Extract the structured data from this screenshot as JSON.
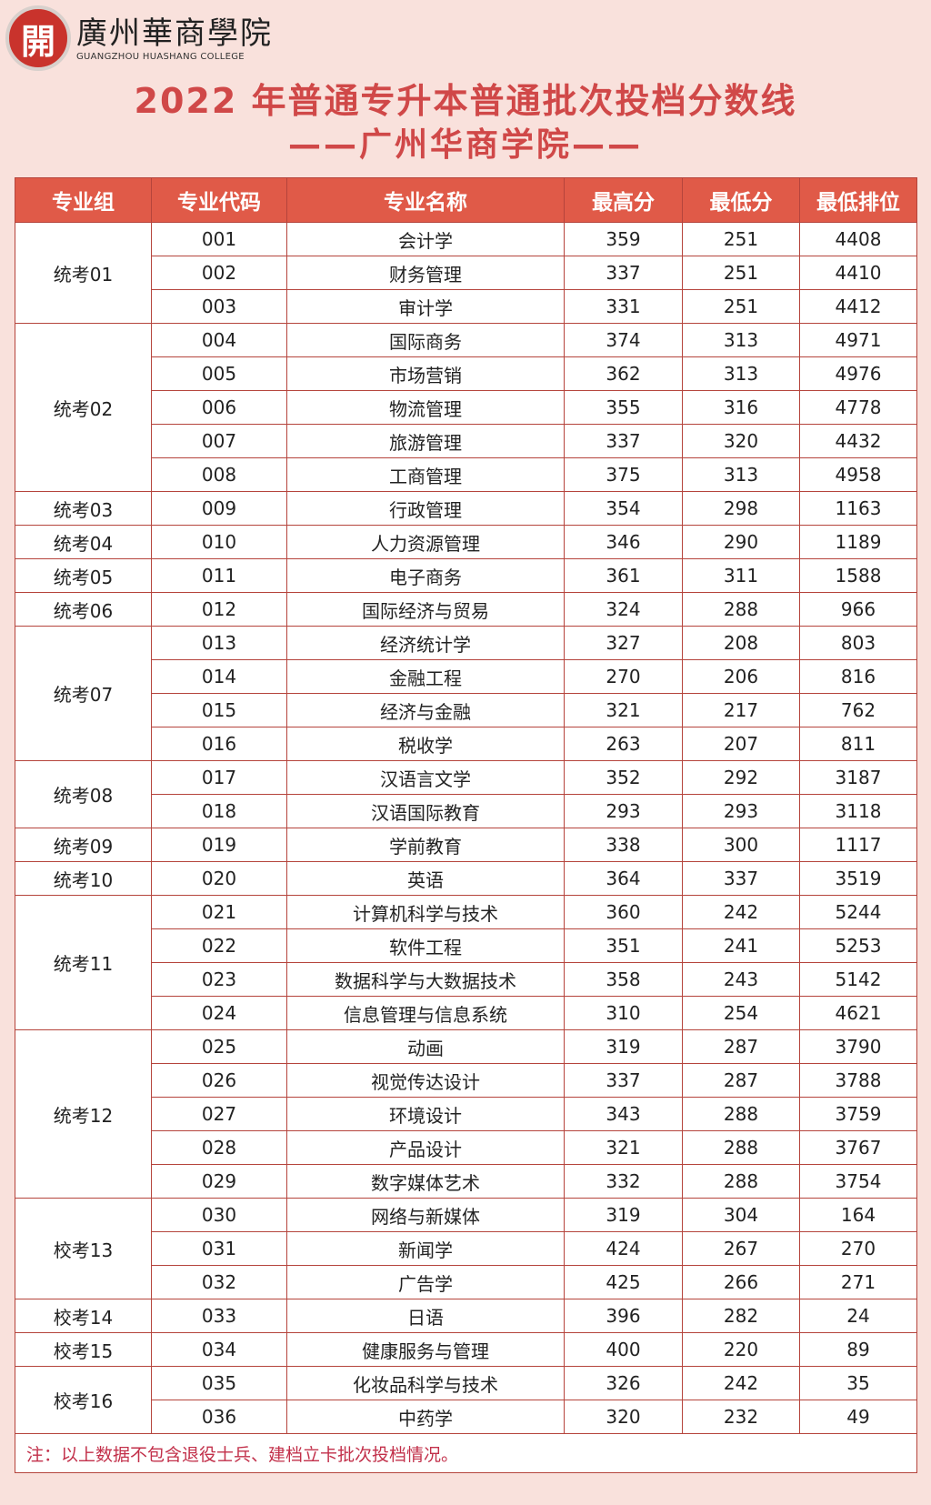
{
  "logo": {
    "cn": "廣州華商學院",
    "en": "GUANGZHOU HUASHANG COLLEGE",
    "seal_char": "開"
  },
  "title": {
    "line1": "2022 年普通专升本普通批次投档分数线",
    "line2": "——广州华商学院——"
  },
  "colors": {
    "background": "#f9e1dc",
    "header": "#e05a48",
    "border": "#b5443c",
    "title": "#d04848",
    "note": "#c2304a"
  },
  "table": {
    "headers": [
      "专业组",
      "专业代码",
      "专业名称",
      "最高分",
      "最低分",
      "最低排位"
    ],
    "groups": [
      {
        "name": "统考01",
        "rows": [
          [
            "001",
            "会计学",
            "359",
            "251",
            "4408"
          ],
          [
            "002",
            "财务管理",
            "337",
            "251",
            "4410"
          ],
          [
            "003",
            "审计学",
            "331",
            "251",
            "4412"
          ]
        ]
      },
      {
        "name": "统考02",
        "rows": [
          [
            "004",
            "国际商务",
            "374",
            "313",
            "4971"
          ],
          [
            "005",
            "市场营销",
            "362",
            "313",
            "4976"
          ],
          [
            "006",
            "物流管理",
            "355",
            "316",
            "4778"
          ],
          [
            "007",
            "旅游管理",
            "337",
            "320",
            "4432"
          ],
          [
            "008",
            "工商管理",
            "375",
            "313",
            "4958"
          ]
        ]
      },
      {
        "name": "统考03",
        "rows": [
          [
            "009",
            "行政管理",
            "354",
            "298",
            "1163"
          ]
        ]
      },
      {
        "name": "统考04",
        "rows": [
          [
            "010",
            "人力资源管理",
            "346",
            "290",
            "1189"
          ]
        ]
      },
      {
        "name": "统考05",
        "rows": [
          [
            "011",
            "电子商务",
            "361",
            "311",
            "1588"
          ]
        ]
      },
      {
        "name": "统考06",
        "rows": [
          [
            "012",
            "国际经济与贸易",
            "324",
            "288",
            "966"
          ]
        ]
      },
      {
        "name": "统考07",
        "rows": [
          [
            "013",
            "经济统计学",
            "327",
            "208",
            "803"
          ],
          [
            "014",
            "金融工程",
            "270",
            "206",
            "816"
          ],
          [
            "015",
            "经济与金融",
            "321",
            "217",
            "762"
          ],
          [
            "016",
            "税收学",
            "263",
            "207",
            "811"
          ]
        ]
      },
      {
        "name": "统考08",
        "rows": [
          [
            "017",
            "汉语言文学",
            "352",
            "292",
            "3187"
          ],
          [
            "018",
            "汉语国际教育",
            "293",
            "293",
            "3118"
          ]
        ]
      },
      {
        "name": "统考09",
        "rows": [
          [
            "019",
            "学前教育",
            "338",
            "300",
            "1117"
          ]
        ]
      },
      {
        "name": "统考10",
        "rows": [
          [
            "020",
            "英语",
            "364",
            "337",
            "3519"
          ]
        ]
      },
      {
        "name": "统考11",
        "rows": [
          [
            "021",
            "计算机科学与技术",
            "360",
            "242",
            "5244"
          ],
          [
            "022",
            "软件工程",
            "351",
            "241",
            "5253"
          ],
          [
            "023",
            "数据科学与大数据技术",
            "358",
            "243",
            "5142"
          ],
          [
            "024",
            "信息管理与信息系统",
            "310",
            "254",
            "4621"
          ]
        ]
      },
      {
        "name": "统考12",
        "rows": [
          [
            "025",
            "动画",
            "319",
            "287",
            "3790"
          ],
          [
            "026",
            "视觉传达设计",
            "337",
            "287",
            "3788"
          ],
          [
            "027",
            "环境设计",
            "343",
            "288",
            "3759"
          ],
          [
            "028",
            "产品设计",
            "321",
            "288",
            "3767"
          ],
          [
            "029",
            "数字媒体艺术",
            "332",
            "288",
            "3754"
          ]
        ]
      },
      {
        "name": "校考13",
        "rows": [
          [
            "030",
            "网络与新媒体",
            "319",
            "304",
            "164"
          ],
          [
            "031",
            "新闻学",
            "424",
            "267",
            "270"
          ],
          [
            "032",
            "广告学",
            "425",
            "266",
            "271"
          ]
        ]
      },
      {
        "name": "校考14",
        "rows": [
          [
            "033",
            "日语",
            "396",
            "282",
            "24"
          ]
        ]
      },
      {
        "name": "校考15",
        "rows": [
          [
            "034",
            "健康服务与管理",
            "400",
            "220",
            "89"
          ]
        ]
      },
      {
        "name": "校考16",
        "rows": [
          [
            "035",
            "化妆品科学与技术",
            "326",
            "242",
            "35"
          ],
          [
            "036",
            "中药学",
            "320",
            "232",
            "49"
          ]
        ]
      }
    ],
    "note": "注：以上数据不包含退役士兵、建档立卡批次投档情况。"
  }
}
